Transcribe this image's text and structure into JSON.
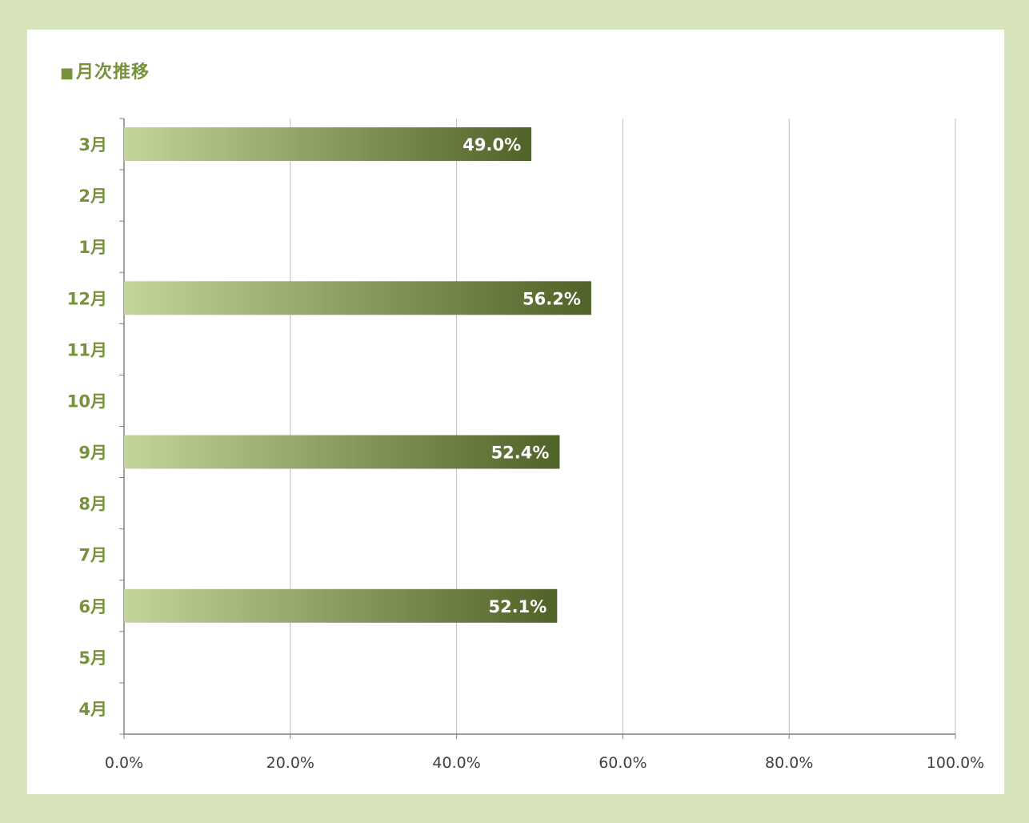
{
  "title": "月次推移",
  "title_marker": "■",
  "colors": {
    "background": "#d8e4bc",
    "panel": "#ffffff",
    "accent": "#76923c",
    "bar_start": "#c2d69b",
    "bar_end": "#4f6228",
    "gridline": "#bfbfbf",
    "axis": "#808080"
  },
  "chart_data": {
    "type": "bar",
    "orientation": "horizontal",
    "categories": [
      "3月",
      "2月",
      "1月",
      "12月",
      "11月",
      "10月",
      "9月",
      "8月",
      "7月",
      "6月",
      "5月",
      "4月"
    ],
    "values": [
      49.0,
      null,
      null,
      56.2,
      null,
      null,
      52.4,
      null,
      null,
      52.1,
      null,
      null
    ],
    "value_labels": [
      "49.0%",
      "",
      "",
      "56.2%",
      "",
      "",
      "52.4%",
      "",
      "",
      "52.1%",
      "",
      ""
    ],
    "x_ticks": [
      0,
      20,
      40,
      60,
      80,
      100
    ],
    "x_tick_labels": [
      "0.0%",
      "20.0%",
      "40.0%",
      "60.0%",
      "80.0%",
      "100.0%"
    ],
    "xlim": [
      0,
      100
    ],
    "grid": "vertical",
    "legend": "none",
    "xlabel": "",
    "ylabel": ""
  }
}
